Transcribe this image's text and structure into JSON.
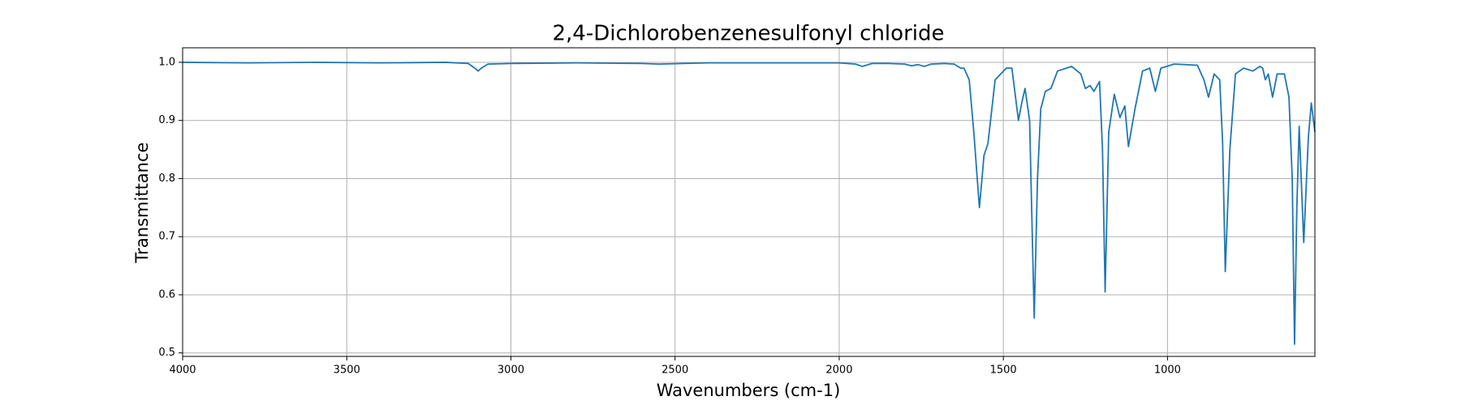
{
  "chart_data": {
    "type": "line",
    "title": "2,4-Dichlorobenzenesulfonyl chloride",
    "xlabel": "Wavenumbers (cm-1)",
    "ylabel": "Transmittance",
    "x": [
      4000,
      3800,
      3600,
      3400,
      3200,
      3130,
      3110,
      3100,
      3090,
      3070,
      3000,
      2800,
      2600,
      2550,
      2400,
      2200,
      2000,
      1950,
      1930,
      1917,
      1900,
      1850,
      1800,
      1780,
      1760,
      1740,
      1720,
      1680,
      1650,
      1630,
      1620,
      1604,
      1590,
      1573,
      1565,
      1559,
      1547,
      1525,
      1491,
      1474,
      1454,
      1444,
      1434,
      1420,
      1406,
      1396,
      1386,
      1372,
      1355,
      1335,
      1292,
      1264,
      1250,
      1236,
      1224,
      1207,
      1198,
      1190,
      1179,
      1162,
      1145,
      1130,
      1119,
      1099,
      1076,
      1054,
      1037,
      1020,
      980,
      909,
      889,
      875,
      858,
      841,
      832,
      824,
      810,
      793,
      768,
      740,
      719,
      710,
      702,
      693,
      680,
      666,
      644,
      630,
      620,
      613,
      606,
      599,
      585,
      571,
      562,
      551
    ],
    "values": [
      1.0,
      0.999,
      1.0,
      0.999,
      1.0,
      0.998,
      0.99,
      0.985,
      0.99,
      0.997,
      0.998,
      0.999,
      0.998,
      0.997,
      0.999,
      0.999,
      0.999,
      0.997,
      0.993,
      0.995,
      0.998,
      0.998,
      0.997,
      0.994,
      0.996,
      0.993,
      0.997,
      0.998,
      0.997,
      0.99,
      0.99,
      0.97,
      0.88,
      0.75,
      0.8,
      0.84,
      0.86,
      0.97,
      0.99,
      0.99,
      0.9,
      0.93,
      0.955,
      0.9,
      0.56,
      0.8,
      0.92,
      0.95,
      0.955,
      0.985,
      0.993,
      0.98,
      0.955,
      0.96,
      0.95,
      0.967,
      0.85,
      0.605,
      0.88,
      0.945,
      0.905,
      0.925,
      0.855,
      0.92,
      0.985,
      0.99,
      0.95,
      0.99,
      0.997,
      0.995,
      0.97,
      0.94,
      0.98,
      0.97,
      0.86,
      0.64,
      0.85,
      0.98,
      0.99,
      0.985,
      0.993,
      0.99,
      0.97,
      0.98,
      0.94,
      0.98,
      0.98,
      0.94,
      0.8,
      0.515,
      0.75,
      0.89,
      0.69,
      0.87,
      0.93,
      0.88
    ],
    "color": "#1f77b4",
    "xlim": [
      4000,
      551
    ],
    "ylim": [
      0.494,
      1.025
    ],
    "xticks": [
      4000,
      3500,
      3000,
      2500,
      2000,
      1500,
      1000
    ],
    "yticks": [
      0.5,
      0.6,
      0.7,
      0.8,
      0.9,
      {
        "value": 1,
        "label": "1.0"
      }
    ],
    "grid": true
  }
}
